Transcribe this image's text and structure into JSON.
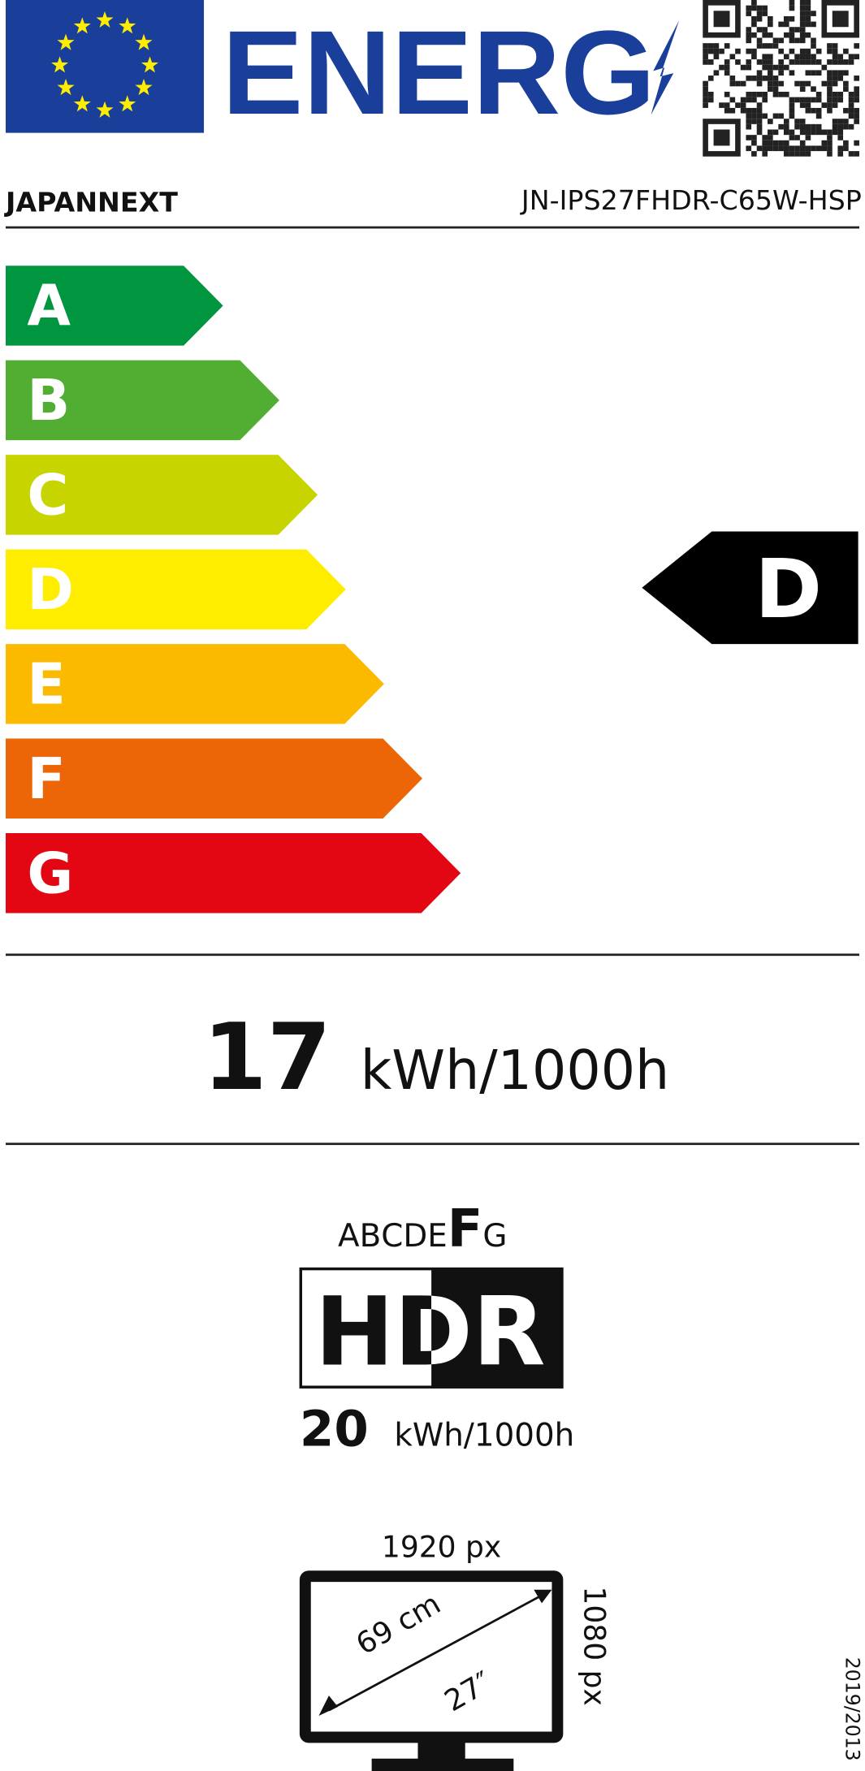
{
  "header": {
    "logo_text": "ENERG",
    "brand": "JAPANNEXT",
    "model": "JN-IPS27FHDR-C65W-HSP"
  },
  "colors": {
    "eu_blue": "#1a3f9a",
    "eu_star": "#ffed00",
    "A": "#009640",
    "B": "#52ae32",
    "C": "#c8d400",
    "D": "#ffed00",
    "E": "#fbba00",
    "F": "#ec6608",
    "G": "#e30613"
  },
  "scale": {
    "classes": [
      "A",
      "B",
      "C",
      "D",
      "E",
      "F",
      "G"
    ],
    "rated_class": "D"
  },
  "sdr": {
    "value": "17",
    "unit": "kWh/1000h"
  },
  "hdr": {
    "scale_letters": [
      "A",
      "B",
      "C",
      "D",
      "E",
      "F",
      "G"
    ],
    "rated_class": "F",
    "label": "HDR",
    "value": "20",
    "unit": "kWh/1000h"
  },
  "screen": {
    "width_px": "1920 px",
    "height_px": "1080 px",
    "diagonal_cm": "69 cm",
    "diagonal_in": "27″"
  },
  "regulation": "2019/2013"
}
